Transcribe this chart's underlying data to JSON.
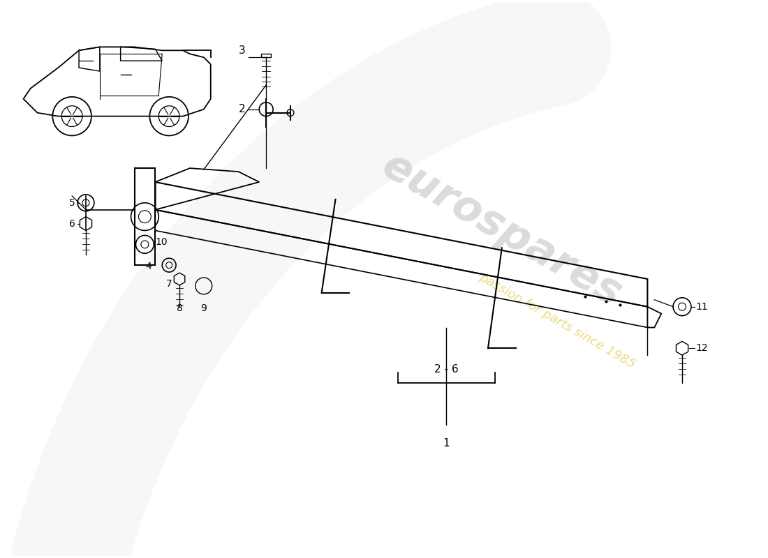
{
  "background_color": "#ffffff",
  "watermark_text": "eurospares",
  "watermark_subtext": "passion for parts since 1985",
  "bracket_label": "2 - 6",
  "part_labels": [
    "1",
    "2",
    "3",
    "4",
    "5",
    "6",
    "7",
    "8",
    "9",
    "10",
    "11",
    "12"
  ]
}
